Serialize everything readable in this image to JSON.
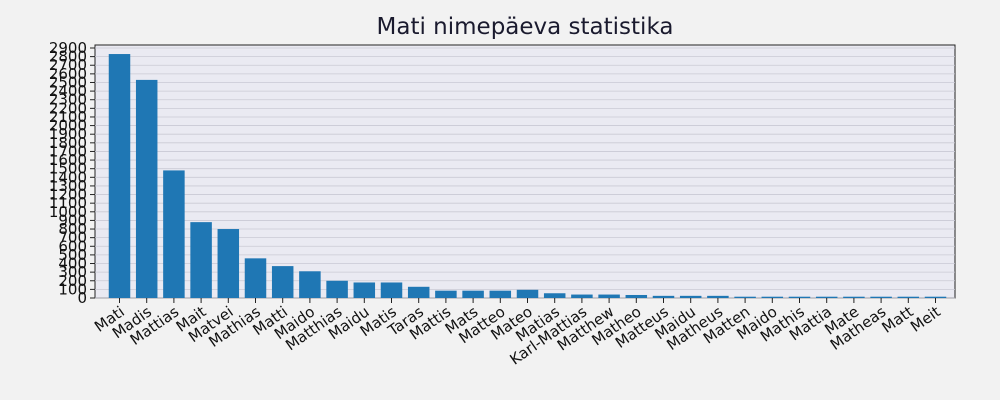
{
  "chart_data": {
    "type": "bar",
    "title": "Mati nimepäeva statistika",
    "xlabel": "",
    "ylabel": "",
    "ylim": [
      0,
      2900
    ],
    "yticks": [
      0,
      100,
      200,
      300,
      400,
      500,
      600,
      700,
      800,
      900,
      1000,
      1100,
      1200,
      1300,
      1400,
      1500,
      1600,
      1700,
      1800,
      1900,
      2000,
      2100,
      2200,
      2300,
      2400,
      2500,
      2600,
      2700,
      2800,
      2900
    ],
    "grid": true,
    "bar_color": "#1f77b4",
    "background_color": "#f2f2f2",
    "plot_background_color": "#eaeaf2",
    "categories": [
      "Mati",
      "Madis",
      "Mattias",
      "Mait",
      "Matvei",
      "Mathias",
      "Matti",
      "Maido",
      "Matthias",
      "Maidu",
      "Matis",
      "Taras",
      "Mattis",
      "Mats",
      "Matteo",
      "Mateo",
      "Matias",
      "Karl-Mattias",
      "Matthew",
      "Matheo",
      "Matteus",
      "Maidu",
      "Matheus",
      "Matten",
      "Maido",
      "Mathis",
      "Mattia",
      "Mate",
      "Matheas",
      "Matt",
      "Meit"
    ],
    "values": [
      2830,
      2530,
      1480,
      880,
      800,
      460,
      370,
      310,
      200,
      180,
      180,
      130,
      85,
      85,
      85,
      95,
      55,
      40,
      40,
      35,
      25,
      25,
      25,
      15,
      15,
      15,
      15,
      15,
      15,
      15,
      15
    ]
  }
}
